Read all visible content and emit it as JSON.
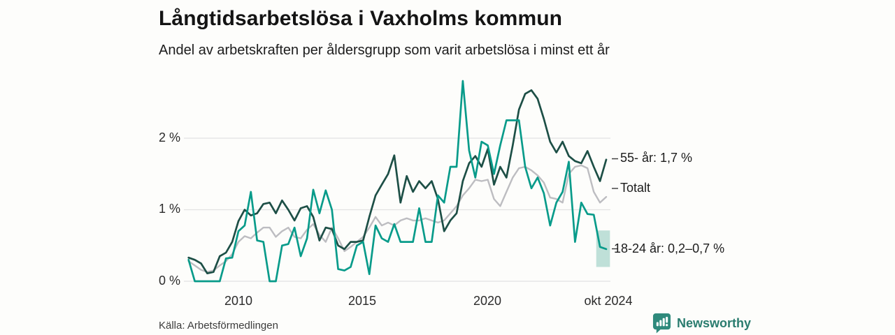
{
  "chart_data": {
    "type": "line",
    "title": "Långtidsarbetslösa i Vaxholms kommun",
    "subtitle": "Andel av arbetskraften per åldersgrupp som varit arbetslösa i minst ett år",
    "source": "Källa: Arbetsförmedlingen",
    "unit": "%",
    "legend_position": "right-end-labels",
    "x_axis": {
      "ticks": [
        "2010",
        "2015",
        "2020",
        "okt 2024"
      ],
      "tick_positions": [
        2010,
        2015,
        2020,
        2024.75
      ],
      "range": [
        2008,
        2024.9
      ]
    },
    "y_axis": {
      "ticks": [
        "0 %",
        "1 %",
        "2 %"
      ],
      "tick_values": [
        0,
        1,
        2
      ],
      "range": [
        0,
        2.85
      ],
      "grid": true
    },
    "x": [
      2008,
      2008.25,
      2008.5,
      2008.75,
      2009,
      2009.25,
      2009.5,
      2009.75,
      2010,
      2010.25,
      2010.5,
      2010.75,
      2011,
      2011.25,
      2011.5,
      2011.75,
      2012,
      2012.25,
      2012.5,
      2012.75,
      2013,
      2013.25,
      2013.5,
      2013.75,
      2014,
      2014.25,
      2014.5,
      2014.75,
      2015,
      2015.25,
      2015.5,
      2015.75,
      2016,
      2016.25,
      2016.5,
      2016.75,
      2017,
      2017.25,
      2017.5,
      2017.75,
      2018,
      2018.25,
      2018.5,
      2018.75,
      2019,
      2019.25,
      2019.5,
      2019.75,
      2020,
      2020.25,
      2020.5,
      2020.75,
      2021,
      2021.25,
      2021.5,
      2021.75,
      2022,
      2022.25,
      2022.5,
      2022.75,
      2023,
      2023.25,
      2023.5,
      2023.75,
      2024,
      2024.25,
      2024.5,
      2024.75
    ],
    "series": [
      {
        "name": "55- år",
        "end_label": "55- år: 1,7 %",
        "end_value": "1,7 %",
        "color": "#1d4f46",
        "line_width": 2.7,
        "values": [
          0.33,
          0.3,
          0.25,
          0.11,
          0.13,
          0.35,
          0.4,
          0.55,
          0.84,
          1.0,
          0.92,
          0.95,
          1.08,
          1.1,
          0.95,
          1.13,
          1.0,
          0.85,
          1.02,
          1.05,
          0.9,
          0.57,
          0.75,
          0.73,
          0.5,
          0.45,
          0.55,
          0.55,
          0.57,
          0.9,
          1.2,
          1.35,
          1.5,
          1.76,
          1.1,
          1.47,
          1.25,
          1.4,
          1.3,
          1.4,
          1.15,
          0.7,
          0.85,
          0.95,
          1.4,
          1.65,
          1.75,
          1.6,
          1.85,
          1.35,
          1.6,
          1.45,
          1.9,
          2.4,
          2.62,
          2.67,
          2.55,
          2.27,
          1.95,
          1.8,
          1.95,
          1.75,
          1.68,
          1.65,
          1.82,
          1.6,
          1.4,
          1.7
        ]
      },
      {
        "name": "Totalt",
        "end_label": "Totalt",
        "end_value": "",
        "color": "#bdbdc1",
        "line_width": 2.4,
        "values": [
          0.28,
          0.22,
          0.16,
          0.13,
          0.15,
          0.22,
          0.28,
          0.38,
          0.55,
          0.63,
          0.6,
          0.68,
          0.75,
          0.75,
          0.62,
          0.7,
          0.75,
          0.62,
          0.6,
          0.72,
          0.8,
          0.65,
          0.55,
          0.75,
          0.6,
          0.42,
          0.48,
          0.55,
          0.62,
          0.75,
          0.9,
          0.78,
          0.82,
          0.78,
          0.85,
          0.88,
          0.85,
          0.85,
          0.88,
          0.85,
          0.82,
          0.85,
          0.95,
          1.05,
          1.2,
          1.3,
          1.42,
          1.4,
          1.42,
          1.15,
          1.05,
          1.25,
          1.45,
          1.58,
          1.6,
          1.55,
          1.48,
          1.38,
          1.17,
          1.15,
          1.1,
          1.5,
          1.6,
          1.62,
          1.58,
          1.25,
          1.1,
          1.18
        ]
      },
      {
        "name": "18-24 år",
        "end_label": "18-24 år: 0,2–0,7 %",
        "end_value": "0,2–0,7 %",
        "color": "#089b8a",
        "line_width": 2.7,
        "values": [
          0.3,
          0.0,
          0.0,
          0.0,
          0.0,
          0.0,
          0.32,
          0.33,
          0.7,
          0.78,
          1.25,
          0.57,
          0.55,
          0.0,
          0.0,
          0.5,
          0.52,
          0.75,
          0.35,
          0.6,
          1.28,
          0.95,
          1.27,
          1.0,
          0.17,
          0.15,
          0.2,
          0.5,
          0.55,
          0.1,
          0.78,
          0.6,
          0.55,
          0.8,
          0.55,
          0.55,
          0.55,
          1.02,
          0.55,
          0.55,
          1.2,
          1.1,
          1.6,
          1.6,
          2.8,
          1.83,
          1.45,
          1.95,
          1.9,
          1.5,
          1.9,
          2.25,
          2.25,
          2.25,
          1.6,
          1.3,
          1.45,
          1.23,
          0.78,
          1.1,
          1.25,
          1.67,
          0.55,
          1.1,
          0.94,
          0.93,
          0.48,
          0.45
        ],
        "uncertainty_band": {
          "x_start": 2024.35,
          "x_end": 2024.9,
          "y_low": 0.2,
          "y_high": 0.71,
          "color": "#a9d6cc"
        }
      }
    ]
  },
  "brand": {
    "name": "Newsworthy",
    "icon": "bar-chart-pin-icon",
    "text_color": "#2a7c6f",
    "icon_color": "#2f8a7c"
  },
  "theme": {
    "background": "#fdfdfb",
    "grid_color": "#e2e2e2",
    "tick_dash_color": "#3a3a3a"
  }
}
